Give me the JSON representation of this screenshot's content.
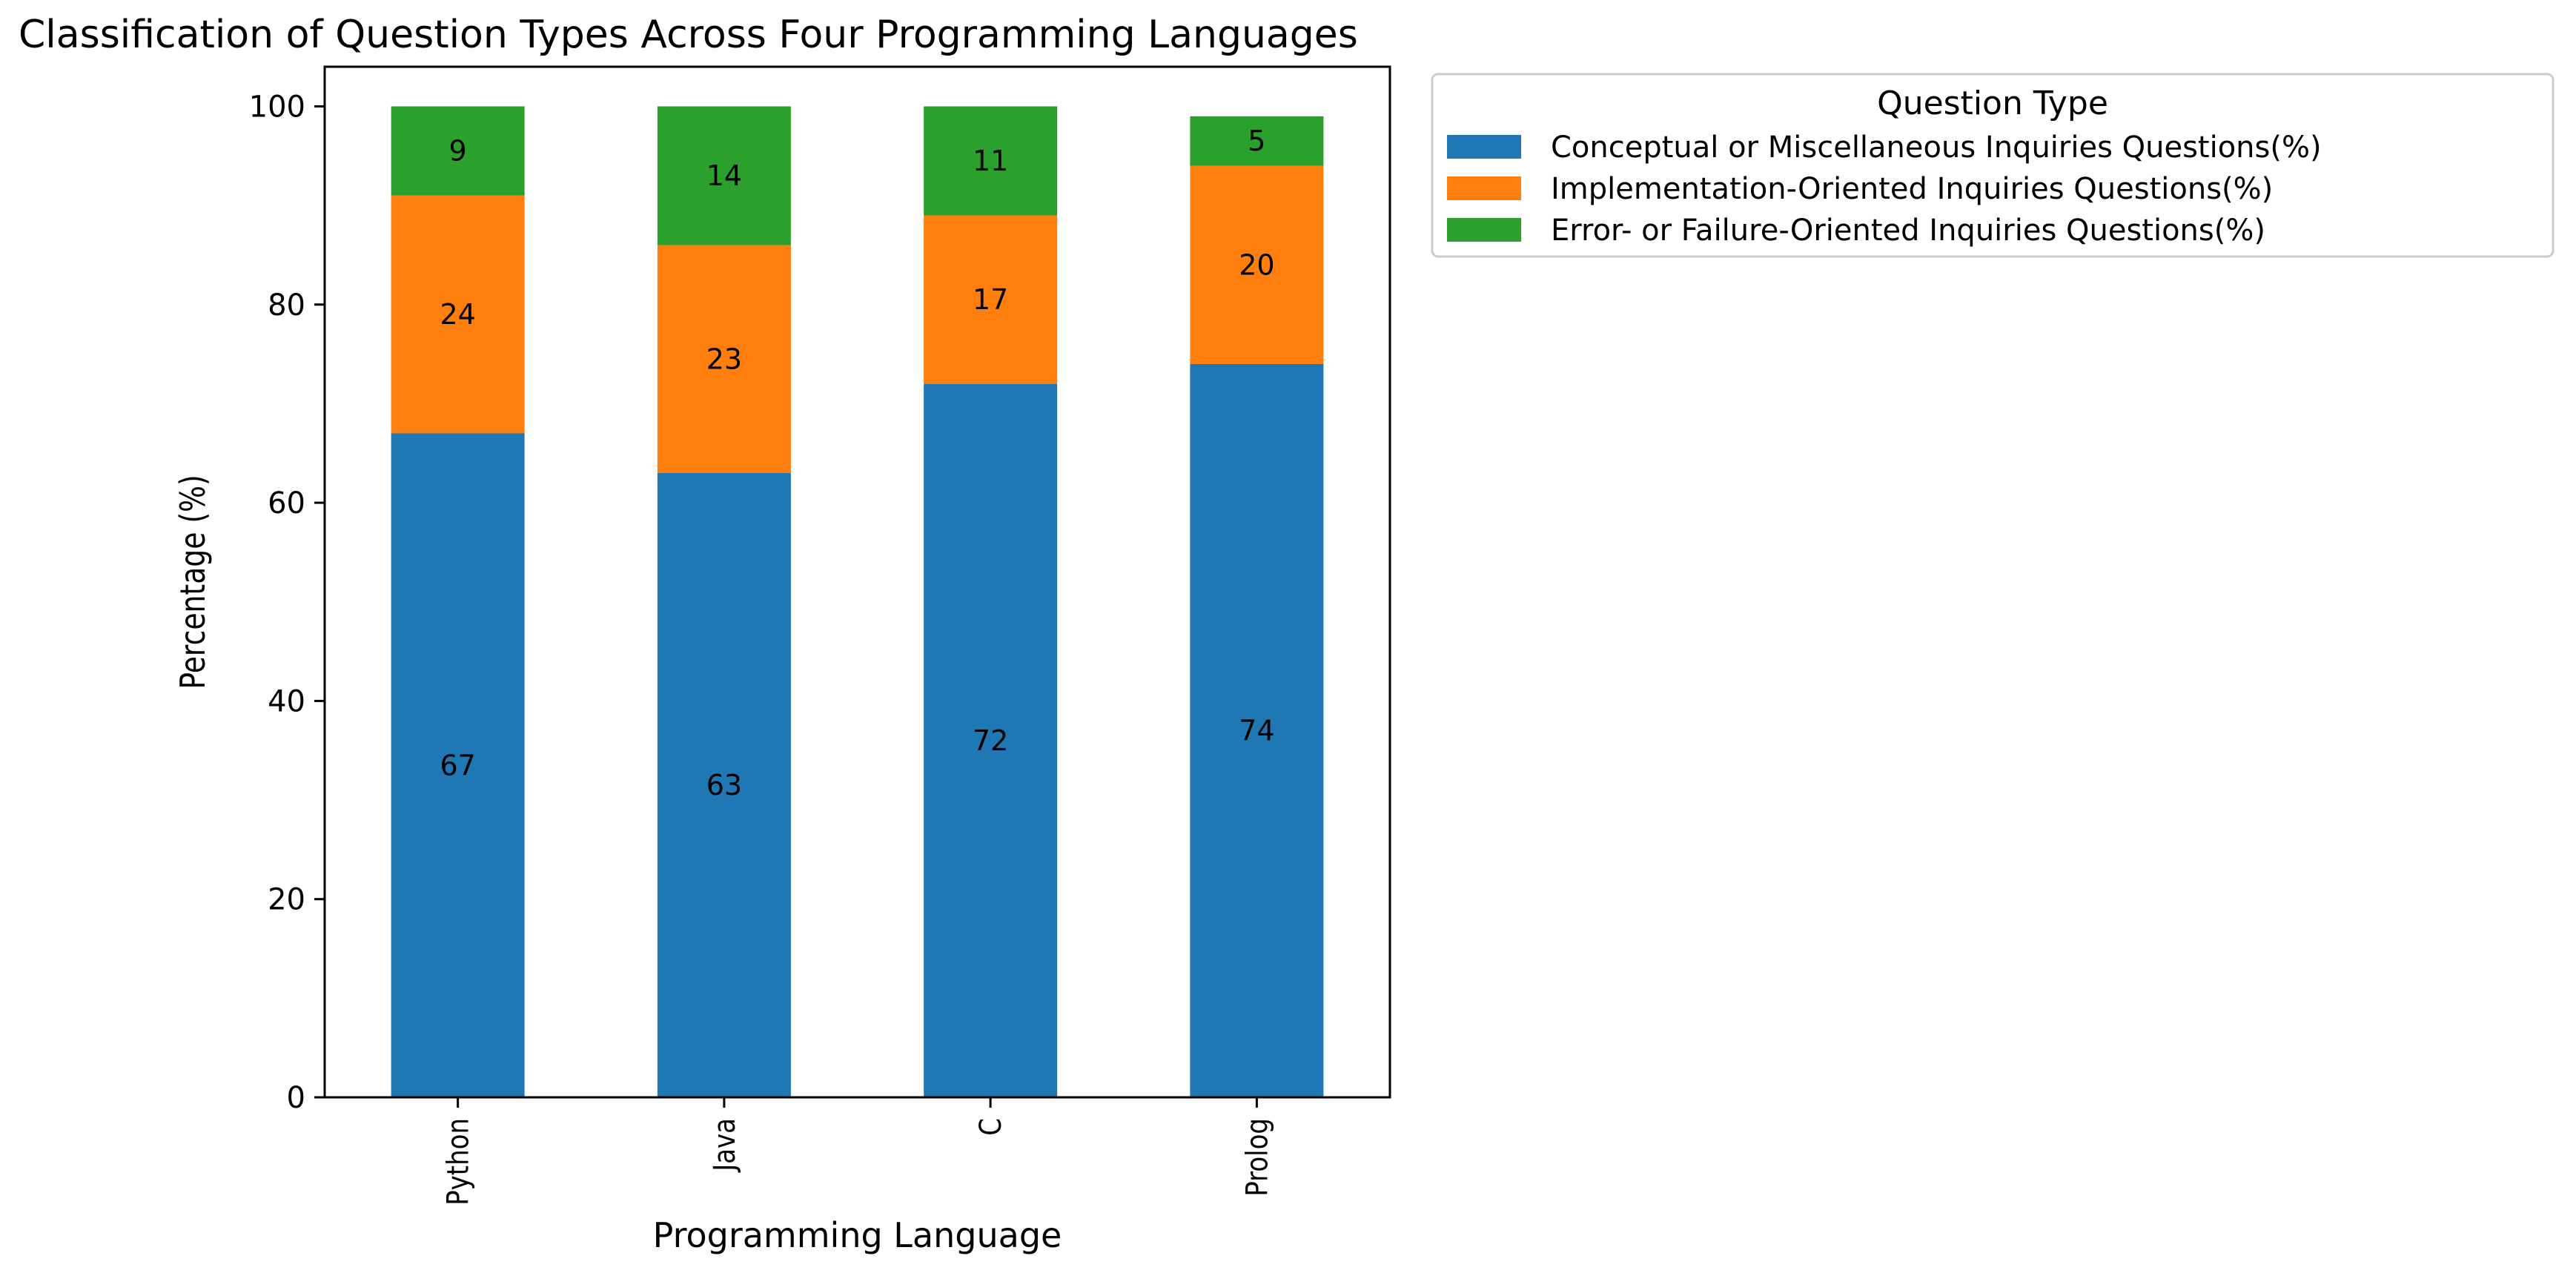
{
  "chart_data": {
    "type": "bar",
    "stacked": true,
    "title": "Classification of Question Types Across Four Programming Languages",
    "xlabel": "Programming Language",
    "ylabel": "Percentage (%)",
    "ylim": [
      0,
      104
    ],
    "yticks": [
      0,
      20,
      40,
      60,
      80,
      100
    ],
    "grid": false,
    "legend_position": "outside-top-right",
    "legend_title": "Question Type",
    "categories": [
      "Python",
      "Java",
      "C",
      "Prolog"
    ],
    "series": [
      {
        "name": "Conceptual or Miscellaneous Inquiries Questions(%)",
        "color": "#1f77b4",
        "values": [
          67,
          63,
          72,
          74
        ]
      },
      {
        "name": "Implementation-Oriented Inquiries Questions(%)",
        "color": "#ff7f0e",
        "values": [
          24,
          23,
          17,
          20
        ]
      },
      {
        "name": "Error- or Failure-Oriented Inquiries Questions(%)",
        "color": "#2ca02c",
        "values": [
          9,
          14,
          11,
          5
        ]
      }
    ]
  }
}
